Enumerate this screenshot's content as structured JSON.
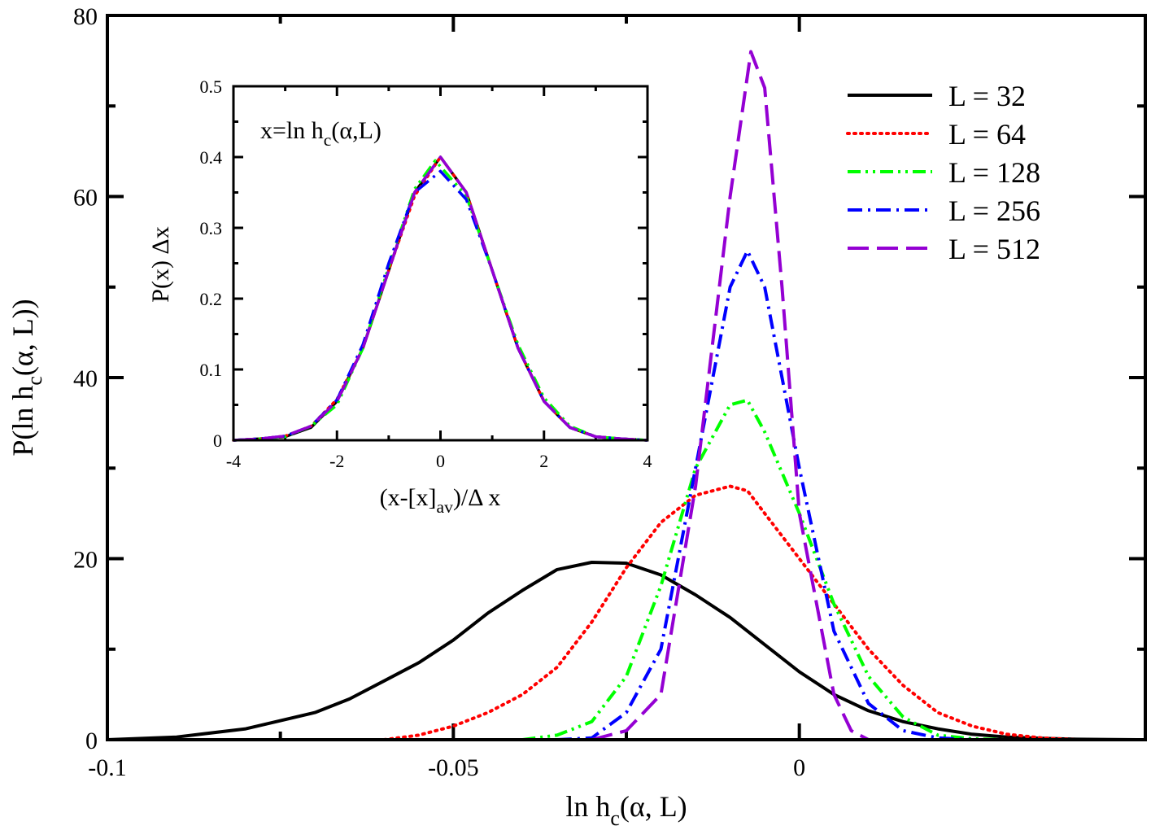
{
  "chart_data": [
    {
      "type": "line",
      "xlabel": {
        "main": "ln h",
        "sub": "c",
        "rest": "(α, L)"
      },
      "ylabel": {
        "main": "P(ln h",
        "sub": "c",
        "rest": "(α, L))"
      },
      "xlim": [
        -0.1,
        0.05
      ],
      "ylim": [
        0,
        80
      ],
      "xticks": [
        -0.1,
        -0.05,
        0
      ],
      "xtick_labels": [
        "-0.1",
        "-0.05",
        "0"
      ],
      "yticks": [
        0,
        20,
        40,
        60,
        80
      ],
      "ytick_labels": [
        "0",
        "20",
        "40",
        "60",
        "80"
      ],
      "legend_position": "top-right",
      "series": [
        {
          "name": "L = 32",
          "color": "#000000",
          "style": "solid",
          "x": [
            -0.1,
            -0.09,
            -0.08,
            -0.07,
            -0.065,
            -0.06,
            -0.055,
            -0.05,
            -0.045,
            -0.04,
            -0.035,
            -0.03,
            -0.025,
            -0.02,
            -0.015,
            -0.01,
            -0.005,
            0,
            0.005,
            0.01,
            0.015,
            0.02,
            0.025,
            0.03,
            0.035,
            0.04,
            0.045,
            0.05
          ],
          "y": [
            0,
            0.3,
            1.2,
            3,
            4.5,
            6.5,
            8.5,
            11,
            14,
            16.5,
            18.8,
            19.6,
            19.5,
            18.2,
            16,
            13.5,
            10.5,
            7.5,
            5,
            3.2,
            2,
            1.2,
            0.6,
            0.3,
            0.15,
            0.05,
            0.02,
            0
          ]
        },
        {
          "name": "L = 64",
          "color": "#ff0000",
          "style": "dotted",
          "x": [
            -0.06,
            -0.055,
            -0.05,
            -0.045,
            -0.04,
            -0.035,
            -0.03,
            -0.025,
            -0.02,
            -0.015,
            -0.01,
            -0.0075,
            -0.005,
            0,
            0.005,
            0.01,
            0.015,
            0.02,
            0.025,
            0.03,
            0.035,
            0.04
          ],
          "y": [
            0,
            0.5,
            1.5,
            3,
            5,
            8,
            13,
            19,
            24,
            27,
            28,
            27.5,
            25,
            20,
            15,
            10,
            6,
            3,
            1.5,
            0.6,
            0.2,
            0
          ]
        },
        {
          "name": "L = 128",
          "color": "#00ff00",
          "style": "dash-dot-dot",
          "x": [
            -0.04,
            -0.035,
            -0.03,
            -0.025,
            -0.02,
            -0.015,
            -0.01,
            -0.0075,
            -0.005,
            0,
            0.005,
            0.01,
            0.015,
            0.02,
            0.025,
            0.03
          ],
          "y": [
            0,
            0.5,
            2,
            7,
            17,
            30,
            37,
            37.5,
            34,
            25,
            15,
            7,
            2.5,
            0.5,
            0.1,
            0
          ]
        },
        {
          "name": "L = 256",
          "color": "#0000ff",
          "style": "dash-dot",
          "x": [
            -0.035,
            -0.03,
            -0.025,
            -0.02,
            -0.015,
            -0.01,
            -0.0075,
            -0.005,
            0,
            0.005,
            0.01,
            0.015,
            0.02,
            0.025
          ],
          "y": [
            0,
            0.2,
            3,
            10,
            30,
            50,
            54,
            50,
            30,
            12,
            4,
            1,
            0.2,
            0
          ]
        },
        {
          "name": "L = 512",
          "color": "#9400d3",
          "style": "dashed",
          "x": [
            -0.03,
            -0.025,
            -0.02,
            -0.015,
            -0.01,
            -0.007,
            -0.005,
            -0.0025,
            0,
            0.005,
            0.0075,
            0.01
          ],
          "y": [
            0,
            1,
            5,
            28,
            60,
            76,
            72,
            50,
            25,
            5,
            1,
            0
          ]
        }
      ]
    },
    {
      "type": "line",
      "annotation": {
        "main": "x=ln h",
        "sub": "c",
        "rest": "(α,L)"
      },
      "xlabel": {
        "main": "(x-[x]",
        "sub": "av",
        "rest": ")/Δ x"
      },
      "ylabel": "P(x) Δx",
      "xlim": [
        -4,
        4
      ],
      "ylim": [
        0,
        0.5
      ],
      "xticks": [
        -4,
        -2,
        0,
        2,
        4
      ],
      "xtick_labels": [
        "-4",
        "-2",
        "0",
        "2",
        "4"
      ],
      "yticks": [
        0,
        0.1,
        0.2,
        0.3,
        0.4,
        0.5
      ],
      "ytick_labels": [
        "0",
        "0.1",
        "0.2",
        "0.3",
        "0.4",
        "0.5"
      ],
      "series": [
        {
          "color": "#000000",
          "style": "solid",
          "x": [
            -4,
            -3.5,
            -3,
            -2.5,
            -2,
            -1.5,
            -1,
            -0.5,
            0,
            0.5,
            1,
            1.5,
            2,
            2.5,
            3,
            3.5,
            4
          ],
          "y": [
            0,
            0.002,
            0.005,
            0.018,
            0.055,
            0.13,
            0.24,
            0.35,
            0.4,
            0.35,
            0.24,
            0.13,
            0.055,
            0.018,
            0.005,
            0.002,
            0
          ]
        },
        {
          "color": "#ff0000",
          "style": "dotted",
          "x": [
            -4,
            -3.5,
            -3,
            -2.5,
            -2,
            -1.5,
            -1,
            -0.5,
            0,
            0.5,
            1,
            1.5,
            2,
            2.5,
            3,
            3.5,
            4
          ],
          "y": [
            0,
            0.002,
            0.006,
            0.02,
            0.058,
            0.13,
            0.24,
            0.345,
            0.4,
            0.35,
            0.24,
            0.13,
            0.055,
            0.018,
            0.005,
            0.002,
            0
          ]
        },
        {
          "color": "#00ff00",
          "style": "dash-dot-dot",
          "x": [
            -4,
            -3.5,
            -3,
            -2.5,
            -2,
            -1.5,
            -1,
            -0.5,
            -0.1,
            0.5,
            1,
            1.5,
            2,
            2.5,
            3,
            3.5,
            4
          ],
          "y": [
            0,
            0.002,
            0.005,
            0.02,
            0.05,
            0.13,
            0.245,
            0.355,
            0.395,
            0.345,
            0.24,
            0.135,
            0.06,
            0.02,
            0.005,
            0.002,
            0
          ]
        },
        {
          "color": "#0000ff",
          "style": "dash-dot",
          "x": [
            -4,
            -3.5,
            -3,
            -2.5,
            -2,
            -1.5,
            -1,
            -0.5,
            0,
            0.5,
            1,
            1.5,
            2,
            2.5,
            3,
            3.5,
            4
          ],
          "y": [
            0,
            0.002,
            0.006,
            0.02,
            0.057,
            0.135,
            0.25,
            0.35,
            0.38,
            0.34,
            0.24,
            0.13,
            0.055,
            0.018,
            0.005,
            0.002,
            0
          ]
        },
        {
          "color": "#9400d3",
          "style": "dashed",
          "x": [
            -4,
            -3.5,
            -3,
            -2.5,
            -2,
            -1.5,
            -1,
            -0.5,
            0,
            0.5,
            1,
            1.5,
            2,
            2.5,
            3,
            3.5,
            4
          ],
          "y": [
            0,
            0.002,
            0.006,
            0.02,
            0.055,
            0.13,
            0.24,
            0.35,
            0.4,
            0.35,
            0.24,
            0.13,
            0.055,
            0.018,
            0.005,
            0.002,
            0
          ]
        }
      ]
    }
  ]
}
